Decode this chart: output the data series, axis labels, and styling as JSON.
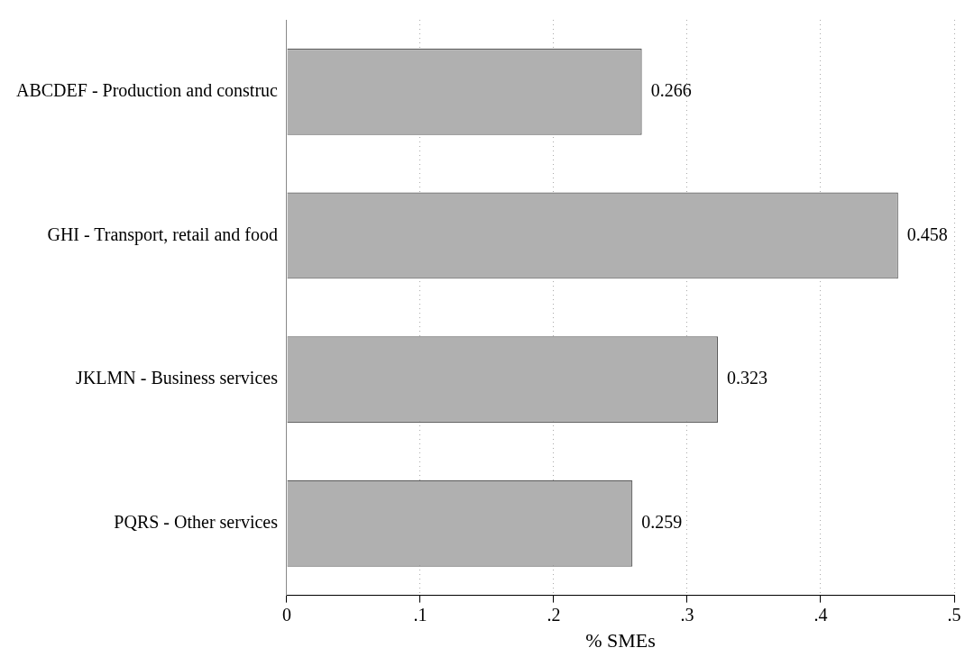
{
  "chart_data": {
    "type": "bar",
    "orientation": "horizontal",
    "xlabel": "% SMEs",
    "categories": [
      "ABCDEF - Production and construc",
      "GHI - Transport, retail and food",
      "JKLMN - Business services",
      "PQRS - Other services"
    ],
    "values": [
      0.266,
      0.458,
      0.323,
      0.259
    ],
    "color": "#b0b0b0",
    "xlim": [
      0,
      0.5
    ],
    "xticks": [
      0,
      {
        "value": 0.1,
        "label": ".1"
      },
      {
        "value": 0.2,
        "label": ".2"
      },
      {
        "value": 0.3,
        "label": ".3"
      },
      {
        "value": 0.4,
        "label": ".4"
      },
      {
        "value": 0.5,
        "label": ".5"
      }
    ],
    "grid": "x",
    "legend": false,
    "data_labels": true
  }
}
